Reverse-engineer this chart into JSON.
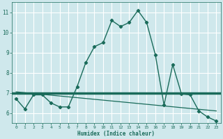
{
  "xlabel": "Humidex (Indice chaleur)",
  "xlim": [
    -0.5,
    23.5
  ],
  "ylim": [
    5.5,
    11.5
  ],
  "yticks": [
    6,
    7,
    8,
    9,
    10,
    11
  ],
  "xticks": [
    0,
    1,
    2,
    3,
    4,
    5,
    6,
    7,
    8,
    9,
    10,
    11,
    12,
    13,
    14,
    15,
    16,
    17,
    18,
    19,
    20,
    21,
    22,
    23
  ],
  "bg_color": "#cfe8ec",
  "line_color": "#1a6b5a",
  "grid_color": "#ffffff",
  "main_x": [
    0,
    1,
    2,
    3,
    4,
    5,
    6,
    7,
    8,
    9,
    10,
    11,
    12,
    13,
    14,
    15,
    16,
    17,
    18,
    19,
    20,
    21,
    22,
    23
  ],
  "main_y": [
    6.7,
    6.2,
    6.9,
    6.9,
    6.5,
    6.3,
    6.3,
    7.3,
    8.5,
    9.3,
    9.5,
    10.6,
    10.3,
    10.5,
    11.1,
    10.5,
    8.9,
    6.4,
    8.4,
    6.95,
    6.9,
    6.1,
    5.8,
    5.6
  ],
  "trend_x": [
    0,
    23
  ],
  "trend_y": [
    7.05,
    6.1
  ],
  "hline_y": 7.0
}
